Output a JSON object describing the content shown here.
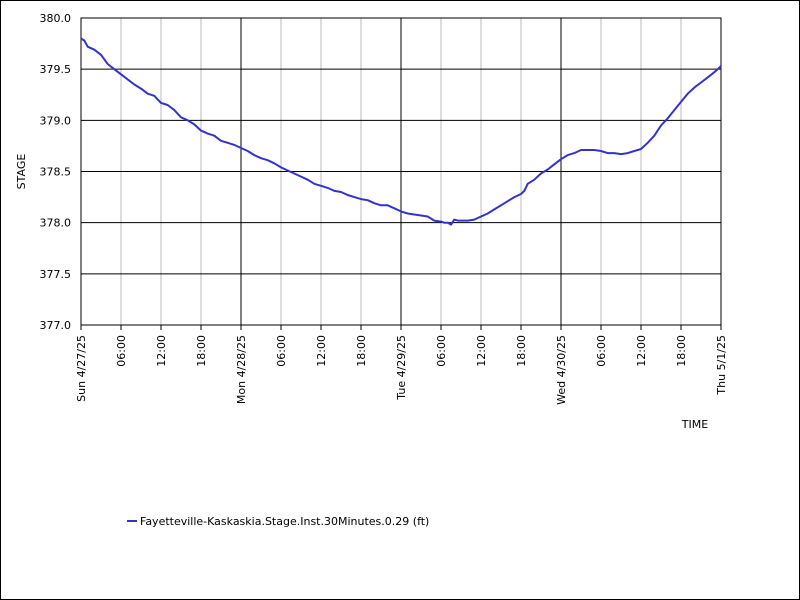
{
  "chart_data": {
    "type": "line",
    "ylabel": "STAGE",
    "xlabel": "TIME",
    "ylim": [
      377.0,
      380.0
    ],
    "yticks": [
      377.0,
      377.5,
      378.0,
      378.5,
      379.0,
      379.5,
      380.0
    ],
    "ytick_labels": [
      "377.0",
      "377.5",
      "378.0",
      "378.5",
      "379.0",
      "379.5",
      "380.0"
    ],
    "xlim_hours": [
      0,
      96
    ],
    "xticks": [
      {
        "hour": 0,
        "label": "Sun 4/27/25",
        "major": true
      },
      {
        "hour": 6,
        "label": "06:00",
        "major": false
      },
      {
        "hour": 12,
        "label": "12:00",
        "major": false
      },
      {
        "hour": 18,
        "label": "18:00",
        "major": false
      },
      {
        "hour": 24,
        "label": "Mon 4/28/25",
        "major": true
      },
      {
        "hour": 30,
        "label": "06:00",
        "major": false
      },
      {
        "hour": 36,
        "label": "12:00",
        "major": false
      },
      {
        "hour": 42,
        "label": "18:00",
        "major": false
      },
      {
        "hour": 48,
        "label": "Tue 4/29/25",
        "major": true
      },
      {
        "hour": 54,
        "label": "06:00",
        "major": false
      },
      {
        "hour": 60,
        "label": "12:00",
        "major": false
      },
      {
        "hour": 66,
        "label": "18:00",
        "major": false
      },
      {
        "hour": 72,
        "label": "Wed 4/30/25",
        "major": true
      },
      {
        "hour": 78,
        "label": "06:00",
        "major": false
      },
      {
        "hour": 84,
        "label": "12:00",
        "major": false
      },
      {
        "hour": 90,
        "label": "18:00",
        "major": false
      },
      {
        "hour": 96,
        "label": "Thu 5/1/25",
        "major": true
      }
    ],
    "grid": true,
    "legend_position": "bottom-left",
    "series": [
      {
        "name": "Fayetteville-Kaskaskia.Stage.Inst.30Minutes.0.29 (ft)",
        "color": "#3333cc",
        "x_hours": [
          0,
          0.5,
          1,
          2,
          3,
          4,
          5,
          6,
          7,
          8,
          9,
          10,
          11,
          12,
          13,
          14,
          15,
          16,
          17,
          18,
          19,
          20,
          21,
          22,
          23,
          24,
          25,
          26,
          27,
          28,
          29,
          30,
          31,
          32,
          33,
          34,
          35,
          36,
          37,
          38,
          39,
          40,
          41,
          42,
          43,
          44,
          45,
          46,
          47,
          48,
          49,
          50,
          51,
          52,
          53,
          54,
          54.5,
          55,
          55.5,
          56,
          56.5,
          57,
          58,
          59,
          60,
          61,
          62,
          63,
          64,
          65,
          66,
          66.5,
          67,
          68,
          69,
          70,
          71,
          72,
          73,
          74,
          75,
          76,
          77,
          78,
          79,
          80,
          81,
          82,
          83,
          84,
          85,
          86,
          87,
          88,
          89,
          90,
          91,
          92,
          93,
          94,
          95,
          96
        ],
        "values": [
          379.8,
          379.78,
          379.72,
          379.69,
          379.64,
          379.55,
          379.5,
          379.45,
          379.4,
          379.35,
          379.31,
          379.26,
          379.24,
          379.17,
          379.15,
          379.1,
          379.03,
          379.0,
          378.96,
          378.9,
          378.87,
          378.85,
          378.8,
          378.78,
          378.76,
          378.73,
          378.7,
          378.66,
          378.63,
          378.61,
          378.58,
          378.54,
          378.51,
          378.48,
          378.45,
          378.42,
          378.38,
          378.36,
          378.34,
          378.31,
          378.3,
          378.27,
          378.25,
          378.23,
          378.22,
          378.19,
          378.17,
          378.17,
          378.14,
          378.11,
          378.09,
          378.08,
          378.07,
          378.06,
          378.02,
          378.01,
          378.0,
          378.0,
          377.98,
          378.03,
          378.02,
          378.02,
          378.02,
          378.03,
          378.06,
          378.09,
          378.13,
          378.17,
          378.21,
          378.25,
          378.28,
          378.31,
          378.38,
          378.42,
          378.48,
          378.52,
          378.57,
          378.62,
          378.66,
          378.68,
          378.71,
          378.71,
          378.71,
          378.7,
          378.68,
          378.68,
          378.67,
          378.68,
          378.7,
          378.72,
          378.78,
          378.85,
          378.95,
          379.02,
          379.1,
          379.18,
          379.26,
          379.32,
          379.37,
          379.42,
          379.47,
          379.53
        ]
      }
    ]
  }
}
